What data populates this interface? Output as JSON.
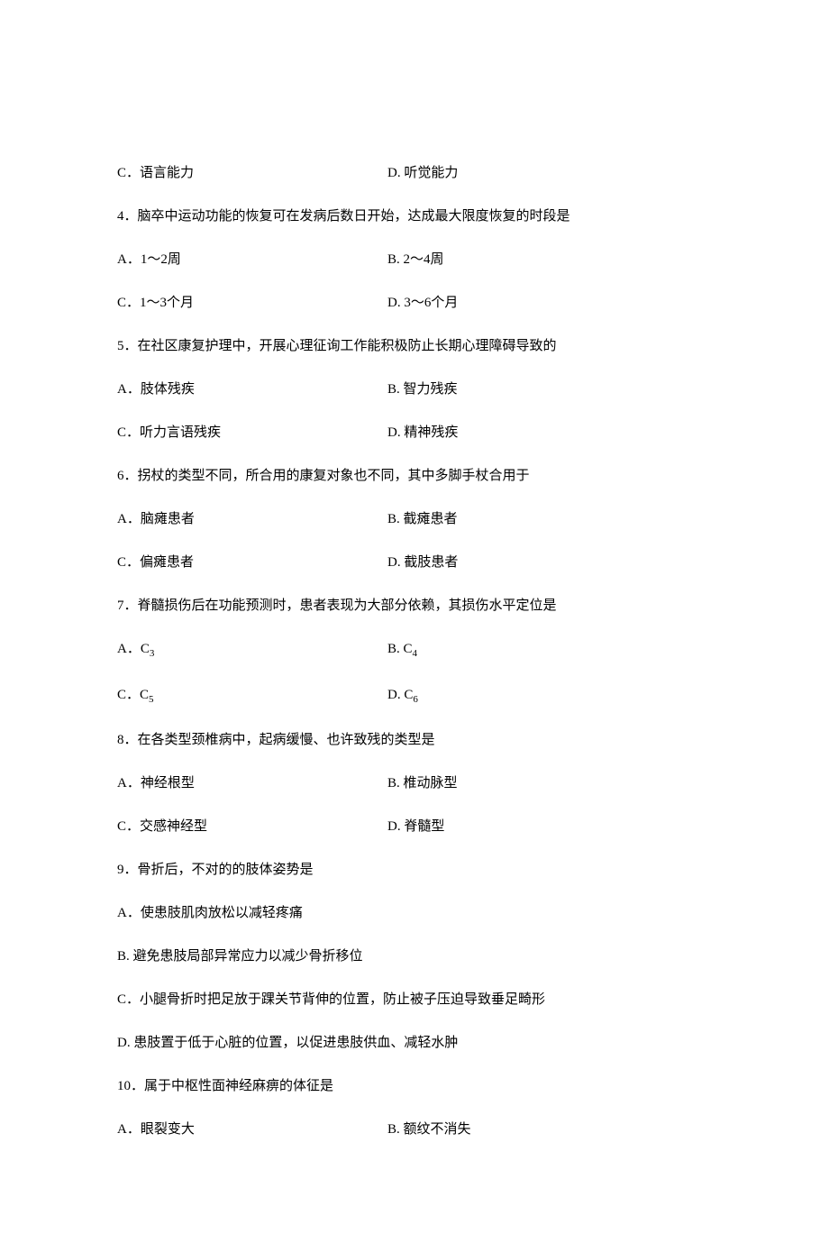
{
  "q3_options": {
    "c": "C．语言能力",
    "d": "D. 听觉能力"
  },
  "q4": {
    "text": "4．脑卒中运动功能的恢复可在发病后数日开始，达成最大限度恢复的时段是",
    "a": "A．1～2周",
    "b": "B. 2～4周",
    "c": "C．1～3个月",
    "d": "D. 3～6个月"
  },
  "q5": {
    "text": "5．在社区康复护理中，开展心理征询工作能积极防止长期心理障碍导致的",
    "a": "A．肢体残疾",
    "b": "B. 智力残疾",
    "c": "C．听力言语残疾",
    "d": "D. 精神残疾"
  },
  "q6": {
    "text": "6．拐杖的类型不同，所合用的康复对象也不同，其中多脚手杖合用于",
    "a": "A．脑瘫患者",
    "b": "B. 截瘫患者",
    "c": "C．偏瘫患者",
    "d": "D. 截肢患者"
  },
  "q7": {
    "text": "7．脊髓损伤后在功能预测时，患者表现为大部分依赖，其损伤水平定位是",
    "a_prefix": "A．C",
    "a_sub": "3",
    "b_prefix": "B. C",
    "b_sub": "4",
    "c_prefix": "C．C",
    "c_sub": "5",
    "d_prefix": "D. C",
    "d_sub": "6"
  },
  "q8": {
    "text": "8．在各类型颈椎病中，起病缓慢、也许致残的类型是",
    "a": "A．神经根型",
    "b": "B. 椎动脉型",
    "c": "C．交感神经型",
    "d": "D. 脊髓型"
  },
  "q9": {
    "text": "9．骨折后，不对的的肢体姿势是",
    "a": "A．使患肢肌肉放松以减轻疼痛",
    "b": "B. 避免患肢局部异常应力以减少骨折移位",
    "c": "C．小腿骨折时把足放于踝关节背伸的位置，防止被子压迫导致垂足畸形",
    "d": "D. 患肢置于低于心脏的位置，以促进患肢供血、减轻水肿"
  },
  "q10": {
    "text": "10．属于中枢性面神经麻痹的体征是",
    "a": "A．眼裂变大",
    "b": "B. 额纹不消失"
  },
  "colors": {
    "text": "#000000",
    "background": "#ffffff"
  },
  "fontsize": 15
}
